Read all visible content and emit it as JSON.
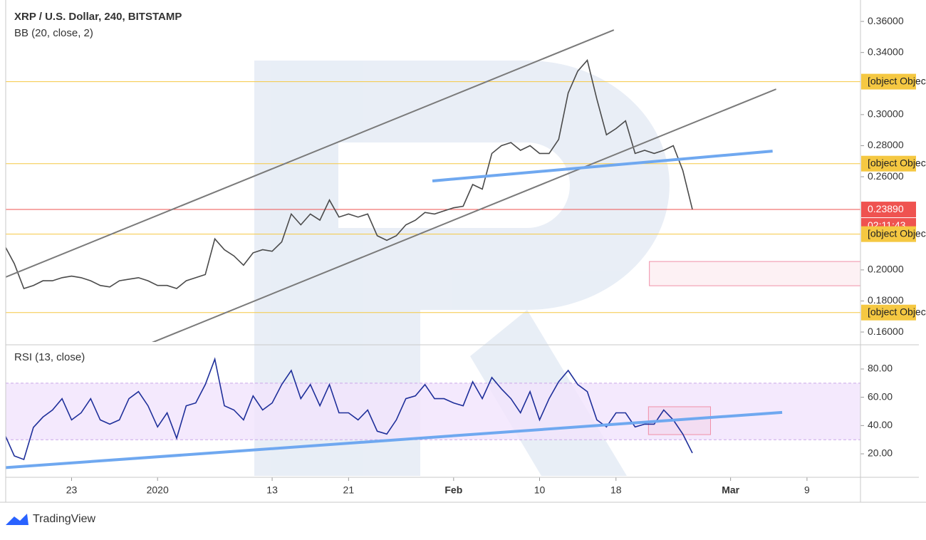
{
  "chart_data": [
    {
      "type": "line",
      "title": "XRP / U.S. Dollar, 240, BITSTAMP",
      "subtitle": "BB (20, close, 2)",
      "x": [
        15,
        16,
        17,
        18,
        19,
        20,
        21,
        22,
        23,
        24,
        25,
        26,
        27,
        28,
        29,
        30,
        31,
        32,
        33,
        34,
        35,
        36,
        37,
        38,
        39,
        40,
        41,
        42,
        43,
        44,
        45,
        46,
        47,
        48,
        49,
        50,
        51,
        52,
        53,
        54,
        55,
        56,
        57,
        58,
        59,
        60,
        61,
        62,
        63,
        64,
        65,
        66,
        67,
        68,
        69,
        70,
        71,
        72,
        73,
        74,
        75,
        76,
        77,
        78,
        79,
        80,
        81,
        82,
        83,
        84,
        85,
        86,
        87
      ],
      "values": [
        0.2155,
        0.204,
        0.188,
        0.19,
        0.193,
        0.193,
        0.195,
        0.196,
        0.195,
        0.193,
        0.19,
        0.189,
        0.193,
        0.194,
        0.195,
        0.193,
        0.19,
        0.19,
        0.188,
        0.193,
        0.195,
        0.197,
        0.22,
        0.213,
        0.209,
        0.203,
        0.211,
        0.213,
        0.212,
        0.218,
        0.236,
        0.229,
        0.236,
        0.232,
        0.245,
        0.234,
        0.236,
        0.234,
        0.236,
        0.222,
        0.219,
        0.222,
        0.229,
        0.232,
        0.237,
        0.236,
        0.238,
        0.24,
        0.241,
        0.255,
        0.252,
        0.275,
        0.28,
        0.282,
        0.277,
        0.28,
        0.275,
        0.275,
        0.284,
        0.314,
        0.328,
        0.335,
        0.31,
        0.287,
        0.291,
        0.296,
        0.275,
        0.277,
        0.275,
        0.277,
        0.28,
        0.264,
        0.239
      ],
      "color": "#4a4a4a",
      "xlim": [
        15.1,
        104.6
      ],
      "ylim": [
        0.1536,
        0.3738
      ],
      "yticks": [
        {
          "value": 0.16,
          "label": "0.16000"
        },
        {
          "value": 0.18,
          "label": "0.18000"
        },
        {
          "value": 0.2,
          "label": "0.20000"
        },
        {
          "value": 0.26,
          "label": "0.26000"
        },
        {
          "value": 0.28,
          "label": "0.28000"
        },
        {
          "value": 0.3,
          "label": "0.30000"
        },
        {
          "value": 0.34,
          "label": "0.34000"
        },
        {
          "value": 0.36,
          "label": "0.36000"
        }
      ],
      "levels": [
        {
          "value": 0.32123,
          "color": "#f5c842"
        },
        {
          "value": 0.26843,
          "color": "#f5c842"
        },
        {
          "value": 0.2389,
          "label": "0.23890",
          "color": "#ef5350"
        },
        {
          "value": 0.22303,
          "color": "#f5c842"
        },
        {
          "value": 0.17254,
          "color": "#f5c842"
        }
      ],
      "countdown": "02:11:43",
      "trendlines": [
        {
          "x": [
            14.55,
            78.78
          ],
          "y": [
            0.194,
            0.3545
          ],
          "color": "#7a7a7a"
        },
        {
          "x": [
            28.18,
            95.77
          ],
          "y": [
            0.1476,
            0.3164
          ],
          "color": "#7a7a7a"
        },
        {
          "x": [
            59.78,
            95.4
          ],
          "y": [
            0.2573,
            0.2765
          ],
          "color": "#6fa8f0"
        }
      ],
      "zones": [
        {
          "x": [
            82.5,
            104.6
          ],
          "y": [
            0.1898,
            0.2054
          ],
          "color": "#f08fa8"
        }
      ]
    },
    {
      "type": "line",
      "title": "RSI (13, close)",
      "x": [
        15,
        16,
        17,
        18,
        19,
        20,
        21,
        22,
        23,
        24,
        25,
        26,
        27,
        28,
        29,
        30,
        31,
        32,
        33,
        34,
        35,
        36,
        37,
        38,
        39,
        40,
        41,
        42,
        43,
        44,
        45,
        46,
        47,
        48,
        49,
        50,
        51,
        52,
        53,
        54,
        55,
        56,
        57,
        58,
        59,
        60,
        61,
        62,
        63,
        64,
        65,
        66,
        67,
        68,
        69,
        70,
        71,
        72,
        73,
        74,
        75,
        76,
        77,
        78,
        79,
        80,
        81,
        82,
        83,
        84,
        85,
        86,
        87
      ],
      "values": [
        33.7,
        18.5,
        16,
        38.7,
        46,
        51,
        59,
        44,
        49,
        59,
        44,
        41,
        44,
        59,
        64,
        54,
        39,
        49,
        31,
        54,
        56,
        69,
        87,
        54,
        51,
        44,
        61,
        51,
        56,
        69,
        79,
        59,
        69,
        54,
        69,
        49,
        49,
        44,
        51,
        36,
        34,
        44,
        59,
        61,
        69,
        59,
        59,
        56,
        54,
        71,
        59,
        74,
        66,
        59,
        49,
        64,
        44,
        59,
        71,
        79,
        69,
        64,
        44,
        39,
        49,
        49,
        39,
        41,
        41,
        51,
        44,
        34,
        20.6
      ],
      "color": "#1e2f9a",
      "band": [
        30,
        70
      ],
      "xlim": [
        15.1,
        104.6
      ],
      "ylim": [
        4.4,
        95.1
      ],
      "yticks": [
        {
          "value": 20,
          "label": "20.00"
        },
        {
          "value": 40,
          "label": "40.00"
        },
        {
          "value": 60,
          "label": "60.00"
        },
        {
          "value": 80,
          "label": "80.00"
        }
      ],
      "xticks": [
        {
          "value": 22,
          "label": "23"
        },
        {
          "value": 31,
          "label": "2020"
        },
        {
          "value": 43,
          "label": "13"
        },
        {
          "value": 51,
          "label": "21"
        },
        {
          "value": 62,
          "label": "Feb"
        },
        {
          "value": 71,
          "label": "10"
        },
        {
          "value": 79,
          "label": "18"
        },
        {
          "value": 91,
          "label": "Mar"
        },
        {
          "value": 99,
          "label": "9"
        }
      ],
      "trendlines": [
        {
          "x": [
            14.55,
            96.4
          ],
          "y": [
            10,
            49.3
          ],
          "color": "#6fa8f0"
        }
      ],
      "zones": [
        {
          "x": [
            82.4,
            88.9
          ],
          "y": [
            33.6,
            53.3
          ],
          "color": "#f08fa8"
        }
      ]
    }
  ],
  "footer": {
    "brand": "TradingView"
  }
}
